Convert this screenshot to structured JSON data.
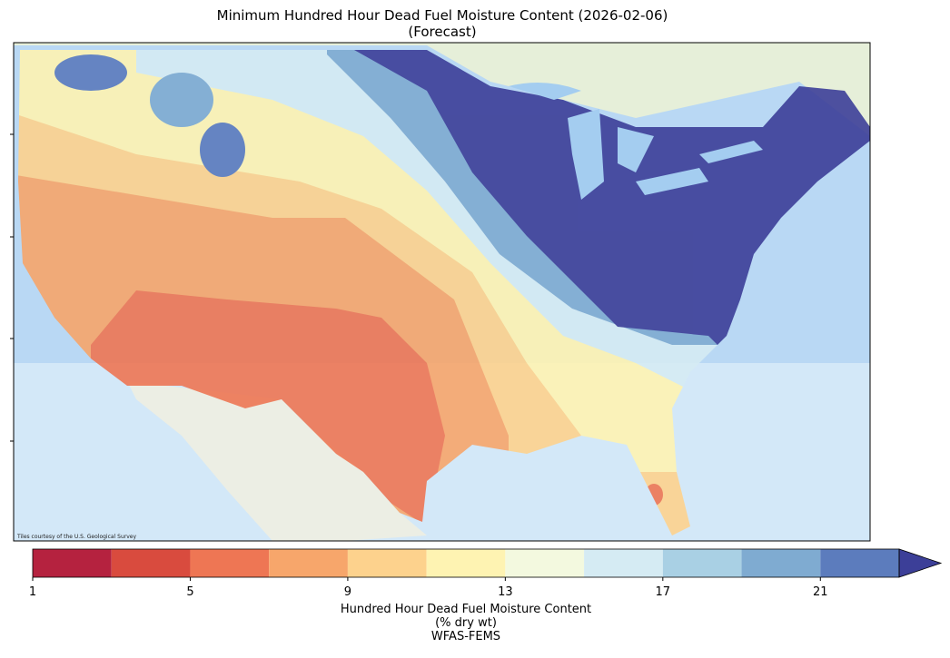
{
  "title": [
    "Minimum Hundred Hour Dead Fuel Moisture Content (2026-02-06)",
    "(Forecast)"
  ],
  "attribution": "Tiles courtesy of the U.S. Geological Survey",
  "colorbar": {
    "bounds": [
      1,
      3,
      5,
      7,
      9,
      11,
      13,
      15,
      17,
      19,
      21,
      23
    ],
    "colors": [
      "#b5223f",
      "#d94b3e",
      "#ee7654",
      "#f7a66b",
      "#fdd28d",
      "#fef3b2",
      "#f3f9df",
      "#d5ebf3",
      "#a9d0e4",
      "#7fabd1",
      "#5c7cbd"
    ],
    "extend_color": "#3c3f98",
    "ticks": [
      1,
      5,
      9,
      13,
      17,
      21
    ],
    "label": [
      "Hundred Hour Dead Fuel Moisture Content",
      "(% dry wt)",
      "WFAS-FEMS"
    ]
  }
}
